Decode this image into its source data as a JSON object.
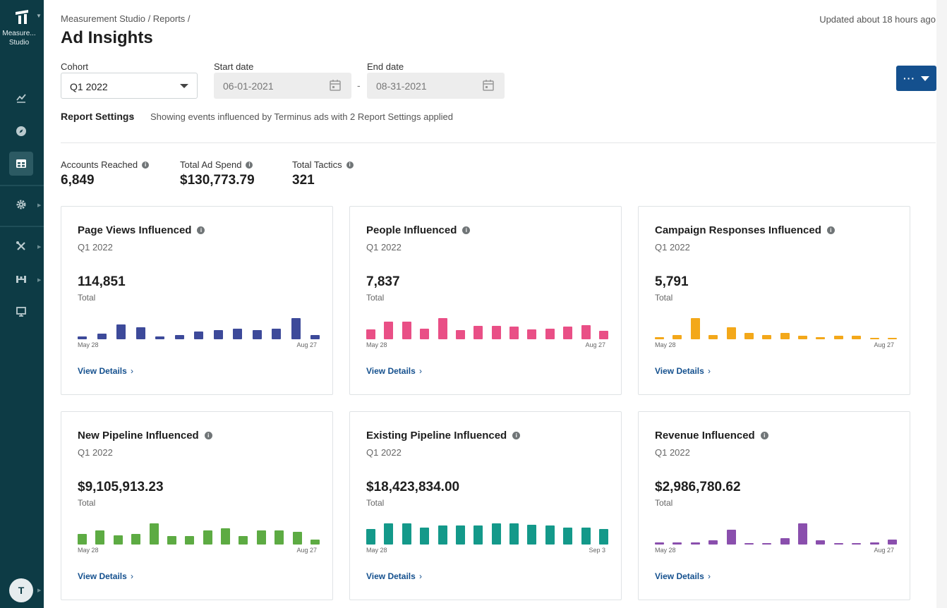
{
  "app": {
    "name": "Measurement Studio"
  },
  "sidebar": {
    "logo_text": "Measure... Studio",
    "items": [
      {
        "name": "analytics-icon"
      },
      {
        "name": "compass-icon"
      },
      {
        "name": "table-icon"
      },
      {
        "name": "gear-icon"
      },
      {
        "name": "tools-icon"
      },
      {
        "name": "org-chart-icon"
      },
      {
        "name": "presentation-icon"
      }
    ],
    "avatar_initial": "T"
  },
  "header": {
    "breadcrumb": "Measurement Studio / Reports /",
    "title": "Ad Insights",
    "updated": "Updated about 18 hours ago"
  },
  "filters": {
    "cohort_label": "Cohort",
    "cohort_value": "Q1 2022",
    "start_label": "Start date",
    "start_value": "06-01-2021",
    "end_label": "End date",
    "end_value": "08-31-2021",
    "separator": "-"
  },
  "actions": {
    "more_label": "···"
  },
  "report_settings": {
    "label": "Report Settings",
    "description": "Showing events influenced by Terminus ads with 2 Report Settings applied"
  },
  "kpis": [
    {
      "label": "Accounts Reached",
      "value": "6,849"
    },
    {
      "label": "Total Ad Spend",
      "value": "$130,773.79"
    },
    {
      "label": "Total Tactics",
      "value": "321"
    }
  ],
  "colors": {
    "sidebar": "#0d3b45",
    "accent": "#14508e",
    "page_views": "#3d4a9a",
    "people": "#e94f86",
    "campaign": "#f3a81a",
    "new_pipeline": "#5dab43",
    "existing_pipeline": "#14998a",
    "revenue": "#8a4fad"
  },
  "cards": [
    {
      "title": "Page Views Influenced",
      "subtitle": "Q1 2022",
      "value": "114,851",
      "total_label": "Total",
      "axis_start": "May 28",
      "axis_end": "Aug 27",
      "link": "View Details",
      "color": "#3d4a9a",
      "bars": [
        2,
        4,
        11,
        9,
        2,
        3,
        6,
        7,
        8,
        7,
        8,
        16,
        3
      ]
    },
    {
      "title": "People Influenced",
      "subtitle": "Q1 2022",
      "value": "7,837",
      "total_label": "Total",
      "axis_start": "May 28",
      "axis_end": "Aug 27",
      "link": "View Details",
      "color": "#e94f86",
      "bars": [
        14,
        26,
        26,
        15,
        31,
        13,
        20,
        20,
        19,
        14,
        15,
        19,
        21,
        12
      ]
    },
    {
      "title": "Campaign Responses Influenced",
      "subtitle": "Q1 2022",
      "value": "5,791",
      "total_label": "Total",
      "axis_start": "May 28",
      "axis_end": "Aug 27",
      "link": "View Details",
      "color": "#f3a81a",
      "bars": [
        3,
        5,
        26,
        5,
        15,
        8,
        5,
        8,
        4,
        3,
        4,
        4,
        2,
        2
      ]
    },
    {
      "title": "New Pipeline Influenced",
      "subtitle": "Q1 2022",
      "value": "$9,105,913.23",
      "total_label": "Total",
      "axis_start": "May 28",
      "axis_end": "Aug 27",
      "link": "View Details",
      "color": "#5dab43",
      "bars": [
        9,
        12,
        8,
        9,
        18,
        7,
        7,
        12,
        14,
        7,
        12,
        12,
        11,
        4
      ]
    },
    {
      "title": "Existing Pipeline Influenced",
      "subtitle": "Q1 2022",
      "value": "$18,423,834.00",
      "total_label": "Total",
      "axis_start": "May 28",
      "axis_end": "Sep 3",
      "link": "View Details",
      "color": "#14998a",
      "bars": [
        14,
        19,
        19,
        15,
        17,
        17,
        17,
        19,
        19,
        18,
        17,
        15,
        15,
        14
      ]
    },
    {
      "title": "Revenue Influenced",
      "subtitle": "Q1 2022",
      "value": "$2,986,780.62",
      "total_label": "Total",
      "axis_start": "May 28",
      "axis_end": "Aug 27",
      "link": "View Details",
      "color": "#8a4fad",
      "bars": [
        3,
        3,
        3,
        6,
        21,
        2,
        2,
        9,
        30,
        6,
        1,
        1,
        3,
        7
      ]
    }
  ]
}
